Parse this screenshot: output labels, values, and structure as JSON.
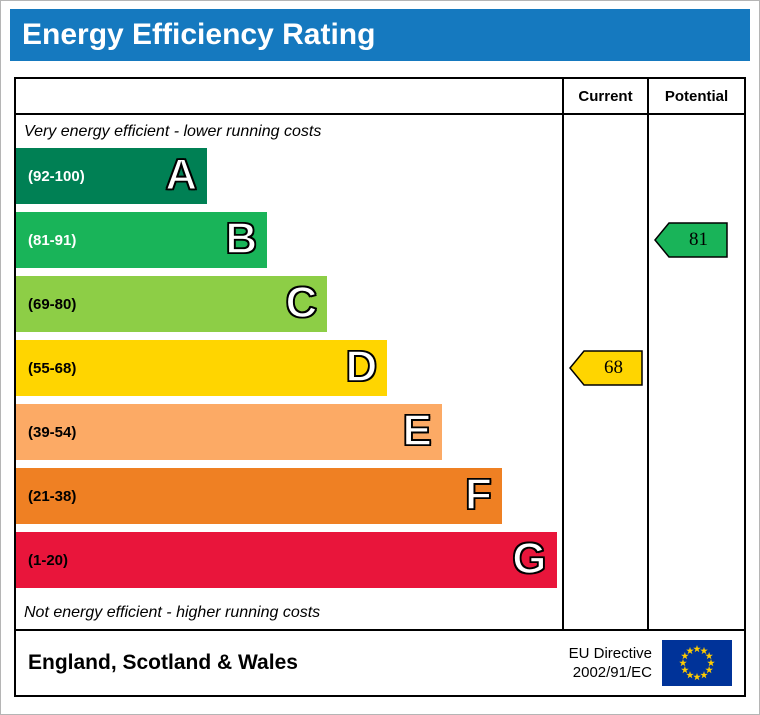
{
  "header": {
    "title": "Energy Efficiency Rating"
  },
  "table": {
    "current_label": "Current",
    "potential_label": "Potential"
  },
  "chart_data": {
    "type": "bar",
    "title": "Energy Efficiency Rating",
    "top_note": "Very energy efficient - lower running costs",
    "bottom_note": "Not energy efficient - higher running costs",
    "bands": [
      {
        "letter": "A",
        "range": "(92-100)",
        "color": "#008054",
        "label_color": "#ffffff",
        "width_pct": 35
      },
      {
        "letter": "B",
        "range": "(81-91)",
        "color": "#19b459",
        "label_color": "#ffffff",
        "width_pct": 46
      },
      {
        "letter": "C",
        "range": "(69-80)",
        "color": "#8dce46",
        "label_color": "#000000",
        "width_pct": 57
      },
      {
        "letter": "D",
        "range": "(55-68)",
        "color": "#ffd500",
        "label_color": "#000000",
        "width_pct": 68
      },
      {
        "letter": "E",
        "range": "(39-54)",
        "color": "#fcaa65",
        "label_color": "#000000",
        "width_pct": 78
      },
      {
        "letter": "F",
        "range": "(21-38)",
        "color": "#ef8023",
        "label_color": "#000000",
        "width_pct": 89
      },
      {
        "letter": "G",
        "range": "(1-20)",
        "color": "#e9153b",
        "label_color": "#000000",
        "width_pct": 99
      }
    ],
    "current": {
      "value": "68",
      "band": "D",
      "color": "#ffd500"
    },
    "potential": {
      "value": "81",
      "band": "B",
      "color": "#19b459"
    }
  },
  "footer": {
    "region": "England, Scotland & Wales",
    "directive_line1": "EU Directive",
    "directive_line2": "2002/91/EC",
    "flag_bg": "#003399",
    "flag_star": "#ffcc00"
  }
}
